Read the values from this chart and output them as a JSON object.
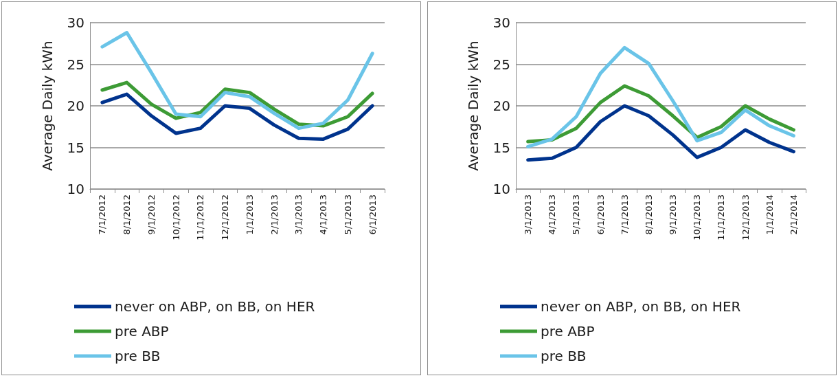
{
  "chart_data": [
    {
      "type": "line",
      "ylabel": "Average Daily kWh",
      "categories": [
        "7/1/2012",
        "8/1/2012",
        "9/1/2012",
        "10/1/2012",
        "11/1/2012",
        "12/1/2012",
        "1/1/2013",
        "2/1/2013",
        "3/1/2013",
        "4/1/2013",
        "5/1/2013",
        "6/1/2013"
      ],
      "ylim": [
        10,
        30
      ],
      "yticks": [
        10,
        15,
        20,
        25,
        30
      ],
      "grid": "y",
      "legend": "bottom",
      "series": [
        {
          "name": "never on ABP, on BB, on HER",
          "color": "#00338d",
          "values": [
            20.4,
            21.4,
            18.8,
            16.7,
            17.3,
            20.0,
            19.7,
            17.7,
            16.1,
            16.0,
            17.2,
            20.0
          ]
        },
        {
          "name": "pre ABP",
          "color": "#3d9b35",
          "values": [
            21.9,
            22.8,
            20.2,
            18.5,
            19.2,
            22.0,
            21.6,
            19.6,
            17.8,
            17.6,
            18.7,
            21.5
          ]
        },
        {
          "name": "pre BB",
          "color": "#6ac4e8",
          "values": [
            27.1,
            28.8,
            24.0,
            19.0,
            18.7,
            21.6,
            21.1,
            19.1,
            17.3,
            17.9,
            20.7,
            26.3
          ]
        }
      ]
    },
    {
      "type": "line",
      "ylabel": "Average Daily kWh",
      "categories": [
        "3/1/2013",
        "4/1/2013",
        "5/1/2013",
        "6/1/2013",
        "7/1/2013",
        "8/1/2013",
        "9/1/2013",
        "10/1/2013",
        "11/1/2013",
        "12/1/2013",
        "1/1/2014",
        "2/1/2014"
      ],
      "ylim": [
        10,
        30
      ],
      "yticks": [
        10,
        15,
        20,
        25,
        30
      ],
      "grid": "y",
      "legend": "bottom",
      "series": [
        {
          "name": "never on ABP, on BB, on HER",
          "color": "#00338d",
          "values": [
            13.5,
            13.7,
            15.0,
            18.1,
            20.0,
            18.8,
            16.5,
            13.8,
            15.0,
            17.1,
            15.6,
            14.5
          ]
        },
        {
          "name": "pre ABP",
          "color": "#3d9b35",
          "values": [
            15.7,
            15.9,
            17.3,
            20.4,
            22.4,
            21.2,
            18.8,
            16.2,
            17.5,
            20.0,
            18.4,
            17.1
          ]
        },
        {
          "name": "pre BB",
          "color": "#6ac4e8",
          "values": [
            15.1,
            16.0,
            18.7,
            23.9,
            27.0,
            25.1,
            20.6,
            15.8,
            16.8,
            19.5,
            17.6,
            16.4
          ]
        }
      ]
    }
  ]
}
